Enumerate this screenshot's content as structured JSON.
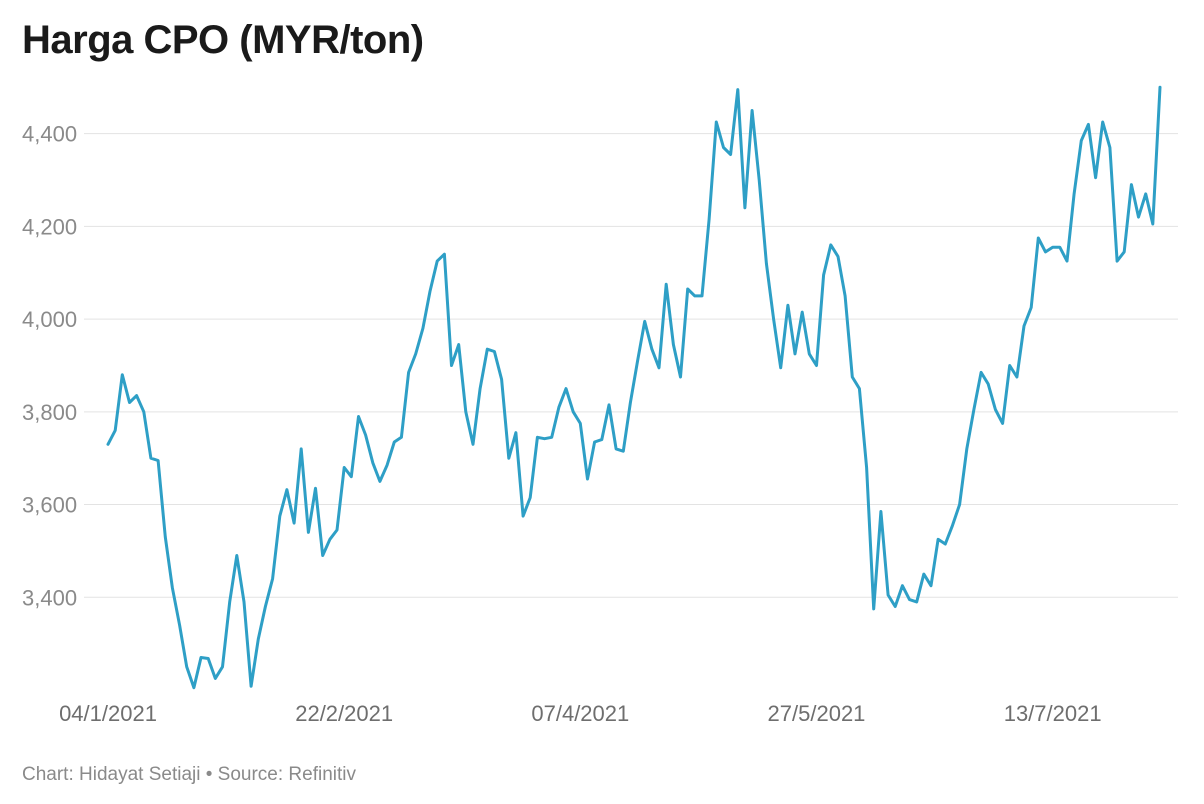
{
  "chart_data": {
    "type": "line",
    "title": "Harga CPO (MYR/ton)",
    "footer": "Chart: Hidayat Setiaji • Source: Refinitiv",
    "ylim": [
      3200,
      4520
    ],
    "grid": "horizontal",
    "line_color": "#2e9fc6",
    "y_ticks": [
      3400,
      3600,
      3800,
      4000,
      4200,
      4400
    ],
    "y_tick_labels": [
      "3,400",
      "3,600",
      "3,800",
      "4,000",
      "4,200",
      "4,400"
    ],
    "x_tick_labels": [
      "04/1/2021",
      "22/2/2021",
      "07/4/2021",
      "27/5/2021",
      "13/7/2021"
    ],
    "x_tick_index": [
      0,
      33,
      66,
      99,
      132
    ],
    "series": [
      {
        "values": [
          3730,
          3760,
          3880,
          3820,
          3835,
          3800,
          3700,
          3695,
          3530,
          3420,
          3340,
          3250,
          3205,
          3270,
          3268,
          3225,
          3250,
          3390,
          3490,
          3390,
          3208,
          3310,
          3380,
          3440,
          3575,
          3632,
          3560,
          3720,
          3540,
          3635,
          3490,
          3525,
          3545,
          3680,
          3660,
          3790,
          3750,
          3690,
          3650,
          3685,
          3735,
          3745,
          3885,
          3925,
          3980,
          4060,
          4125,
          4140,
          3900,
          3945,
          3800,
          3730,
          3850,
          3935,
          3930,
          3870,
          3700,
          3755,
          3575,
          3615,
          3745,
          3742,
          3745,
          3810,
          3850,
          3800,
          3775,
          3655,
          3735,
          3740,
          3815,
          3720,
          3715,
          3820,
          3910,
          3995,
          3935,
          3895,
          4075,
          3945,
          3875,
          4065,
          4050,
          4050,
          4215,
          4425,
          4370,
          4355,
          4495,
          4240,
          4450,
          4300,
          4120,
          4000,
          3895,
          4030,
          3925,
          4015,
          3925,
          3900,
          4095,
          4160,
          4135,
          4050,
          3875,
          3850,
          3680,
          3375,
          3585,
          3405,
          3380,
          3425,
          3395,
          3390,
          3450,
          3425,
          3525,
          3515,
          3555,
          3600,
          3720,
          3805,
          3885,
          3860,
          3805,
          3775,
          3900,
          3875,
          3985,
          4025,
          4175,
          4145,
          4155,
          4155,
          4125,
          4270,
          4385,
          4420,
          4305,
          4425,
          4370,
          4125,
          4145,
          4290,
          4220,
          4270,
          4205,
          4500
        ]
      }
    ]
  }
}
